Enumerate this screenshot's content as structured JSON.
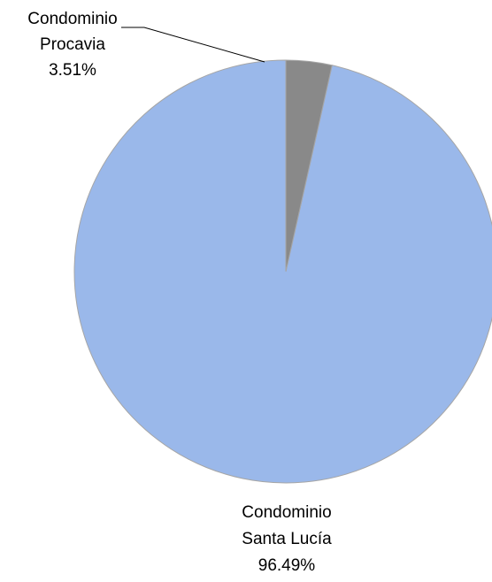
{
  "chart_data": {
    "type": "pie",
    "title": "",
    "start_angle": "12 o'clock",
    "direction": "counterclockwise",
    "slices": [
      {
        "label_lines": [
          "Condominio",
          "Santa Lucía"
        ],
        "percent_label": "96.49%",
        "value": 96.49,
        "color": "#9ab8ea"
      },
      {
        "label_lines": [
          "Condominio",
          "Procavia"
        ],
        "percent_label": "3.51%",
        "value": 3.51,
        "color": "#898989"
      }
    ],
    "border_color": "#a6a6a6",
    "leader_line_color": "#000000"
  }
}
